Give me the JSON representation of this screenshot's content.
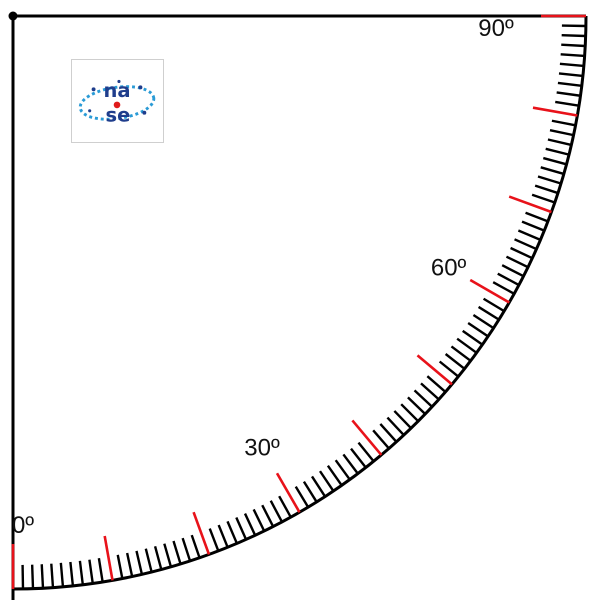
{
  "title": "",
  "logo": {
    "text_top": "na",
    "text_bottom": "se",
    "icon": "nase-logo-icon"
  },
  "scale": {
    "min_deg": 0,
    "max_deg": 90,
    "minor_step_deg": 1,
    "major_step_deg": 10,
    "labels": [
      {
        "deg": 0,
        "text": "0º"
      },
      {
        "deg": 30,
        "text": "30º"
      },
      {
        "deg": 60,
        "text": "60º"
      },
      {
        "deg": 90,
        "text": "90º"
      }
    ]
  },
  "colors": {
    "frame": "#000000",
    "minor_tick": "#000000",
    "major_tick": "#e8121a",
    "label": "#111111",
    "logo_blue": "#1f3d8c",
    "logo_red": "#e01b1b",
    "logo_teal": "#2a9bd6"
  }
}
